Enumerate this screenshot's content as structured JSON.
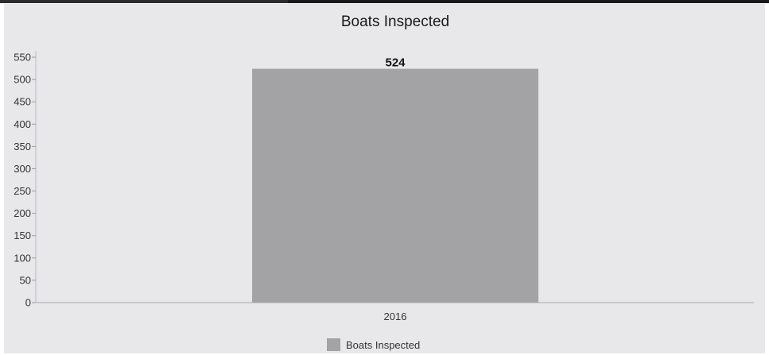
{
  "chart_data": {
    "type": "bar",
    "title": "Boats Inspected",
    "categories": [
      "2016"
    ],
    "series": [
      {
        "name": "Boats Inspected",
        "values": [
          524
        ],
        "color": "#a3a3a6"
      }
    ],
    "data_labels": [
      "524"
    ],
    "ylim": [
      0,
      550
    ],
    "yticks": [
      0,
      50,
      100,
      150,
      200,
      250,
      300,
      350,
      400,
      450,
      500,
      550
    ],
    "grid": false,
    "legend": "bottom-center"
  }
}
